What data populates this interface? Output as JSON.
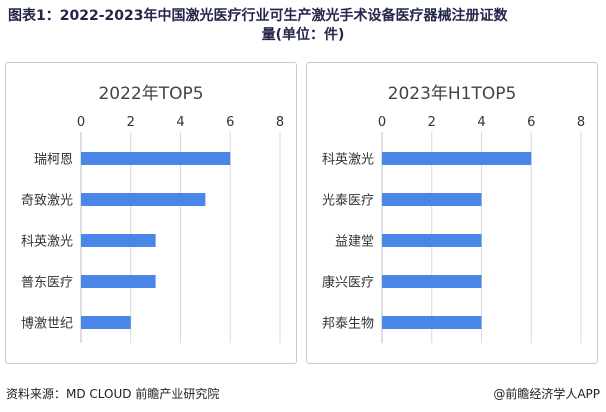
{
  "header": {
    "title_line1": "图表1：2022-2023年中国激光医疗行业可生产激光手术设备医疗器械注册证数",
    "title_line2": "量(单位：件)"
  },
  "footer": {
    "source": "资料来源：MD CLOUD 前瞻产业研究院",
    "credit": "@前瞻经济学人APP"
  },
  "colors": {
    "bar": "#4a86e8",
    "grid": "#d9d9d9",
    "axis": "#bfbfbf"
  },
  "chart_data": [
    {
      "type": "bar",
      "orientation": "horizontal",
      "title": "2022年TOP5",
      "categories": [
        "瑞柯恩",
        "奇致激光",
        "科英激光",
        "普东医疗",
        "博激世纪"
      ],
      "values": [
        6,
        5,
        3,
        3,
        2
      ],
      "xlim": [
        0,
        8
      ],
      "ticks": [
        0,
        2,
        4,
        6,
        8
      ],
      "grid": true
    },
    {
      "type": "bar",
      "orientation": "horizontal",
      "title": "2023年H1TOP5",
      "categories": [
        "科英激光",
        "光泰医疗",
        "益建堂",
        "康兴医疗",
        "邦泰生物"
      ],
      "values": [
        6,
        4,
        4,
        4,
        4
      ],
      "xlim": [
        0,
        8
      ],
      "ticks": [
        0,
        2,
        4,
        6,
        8
      ],
      "grid": true
    }
  ]
}
